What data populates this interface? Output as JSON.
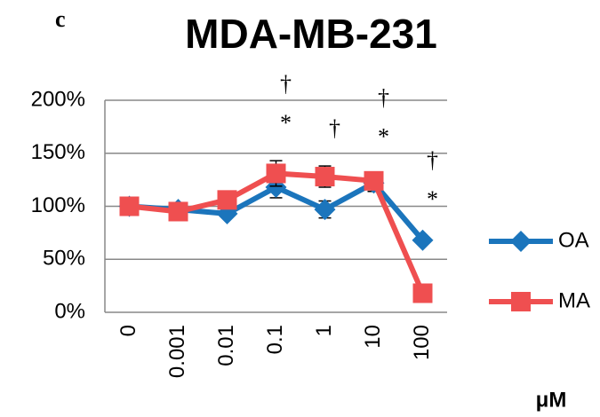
{
  "chart_data": {
    "type": "line",
    "title": "MDA-MB-231",
    "panel_label": "c",
    "x_label": "μM",
    "categories": [
      "0",
      "0.001",
      "0.01",
      "0.1",
      "1",
      "10",
      "100"
    ],
    "series": [
      {
        "name": "OA",
        "color": "#1b75bc",
        "marker": "diamond",
        "values": [
          100,
          97,
          93,
          118,
          97,
          122,
          68
        ],
        "errors": [
          2,
          2,
          3,
          10,
          8,
          8,
          3
        ]
      },
      {
        "name": "MA",
        "color": "#ef4f50",
        "marker": "square",
        "values": [
          100,
          95,
          106,
          131,
          128,
          124,
          18
        ],
        "errors": [
          2,
          3,
          4,
          12,
          10,
          6,
          2
        ]
      }
    ],
    "ylim": [
      0,
      200
    ],
    "yticks": [
      {
        "value": 0,
        "label": "0%"
      },
      {
        "value": 50,
        "label": "50%"
      },
      {
        "value": 100,
        "label": "100%"
      },
      {
        "value": 150,
        "label": "150%"
      },
      {
        "value": 200,
        "label": "200%"
      }
    ],
    "grid": true,
    "legend": "right",
    "annotations": [
      {
        "text": "*",
        "x": "0.1"
      },
      {
        "text": "†",
        "x": "0.1"
      },
      {
        "text": "†",
        "x": "1"
      },
      {
        "text": "*",
        "x": "10"
      },
      {
        "text": "†",
        "x": "10"
      },
      {
        "text": "*",
        "x": "100"
      },
      {
        "text": "†",
        "x": "100"
      }
    ]
  }
}
